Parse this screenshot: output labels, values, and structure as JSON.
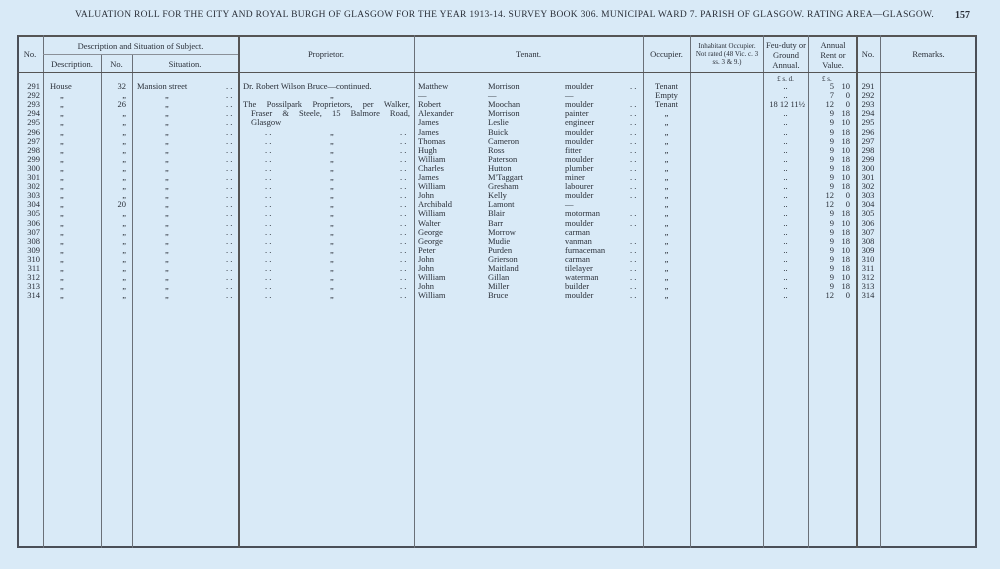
{
  "header": {
    "title": "VALUATION ROLL FOR THE CITY AND ROYAL BURGH OF GLASGOW FOR THE YEAR 1913-14.   SURVEY BOOK 306.   MUNICIPAL WARD 7.   PARISH OF GLASGOW.   RATING AREA—GLASGOW.",
    "page_number": "157"
  },
  "columns": {
    "no": "No.",
    "description_group": "Description and Situation of Subject.",
    "description": "Description.",
    "number": "No.",
    "situation": "Situation.",
    "proprietor": "Proprietor.",
    "tenant": "Tenant.",
    "occupier": "Occupier.",
    "inhabitant": "Inhabitant Occupier. Not rated (48 Vic. c. 3 ss. 3 & 9.)",
    "feu_duty": "Feu-duty or Ground Annual.",
    "annual_rent": "Annual Rent or Value.",
    "no_right": "No.",
    "remarks": "Remarks.",
    "feu_units": "£  s.  d.",
    "rent_units": "£  s."
  },
  "proprietors": {
    "first": "Dr. Robert Wilson Bruce—continued.",
    "second_lines": [
      "The Possilpark Proprietors, per Walker,",
      "Fraser & Steele, 15 Balmore Road,",
      "Glasgow"
    ]
  },
  "rows": [
    {
      "no": "291",
      "desc": "House",
      "num": "32",
      "sit": "Mansion street",
      "first": "Matthew",
      "last": "Morrison",
      "occ": "moulder",
      "occupier": "Tenant",
      "feu": "..",
      "rl": "5",
      "rs": "10"
    },
    {
      "no": "292",
      "desc": "„",
      "num": "„",
      "sit": "„",
      "first": "—",
      "last": "—",
      "occ": "—",
      "occupier": "Empty",
      "feu": "..",
      "rl": "7",
      "rs": "0"
    },
    {
      "no": "293",
      "desc": "„",
      "num": "26",
      "sit": "„",
      "first": "Robert",
      "last": "Moochan",
      "occ": "moulder",
      "occupier": "Tenant",
      "feu": "18  12  11½",
      "rl": "12",
      "rs": "0"
    },
    {
      "no": "294",
      "desc": "„",
      "num": "„",
      "sit": "„",
      "first": "Alexander",
      "last": "Morrison",
      "occ": "painter",
      "occupier": "„",
      "feu": "..",
      "rl": "9",
      "rs": "18"
    },
    {
      "no": "295",
      "desc": "„",
      "num": "„",
      "sit": "„",
      "first": "James",
      "last": "Leslie",
      "occ": "engineer",
      "occupier": "„",
      "feu": "..",
      "rl": "9",
      "rs": "10"
    },
    {
      "no": "296",
      "desc": "„",
      "num": "„",
      "sit": "„",
      "first": "James",
      "last": "Buick",
      "occ": "moulder",
      "occupier": "„",
      "feu": "..",
      "rl": "9",
      "rs": "18"
    },
    {
      "no": "297",
      "desc": "„",
      "num": "„",
      "sit": "„",
      "first": "Thomas",
      "last": "Cameron",
      "occ": "moulder",
      "occupier": "„",
      "feu": "..",
      "rl": "9",
      "rs": "18"
    },
    {
      "no": "298",
      "desc": "„",
      "num": "„",
      "sit": "„",
      "first": "Hugh",
      "last": "Ross",
      "occ": "fitter",
      "occupier": "„",
      "feu": "..",
      "rl": "9",
      "rs": "10"
    },
    {
      "no": "299",
      "desc": "„",
      "num": "„",
      "sit": "„",
      "first": "William",
      "last": "Paterson",
      "occ": "moulder",
      "occupier": "„",
      "feu": "..",
      "rl": "9",
      "rs": "18"
    },
    {
      "no": "300",
      "desc": "„",
      "num": "„",
      "sit": "„",
      "first": "Charles",
      "last": "Hutton",
      "occ": "plumber",
      "occupier": "„",
      "feu": "..",
      "rl": "9",
      "rs": "18"
    },
    {
      "no": "301",
      "desc": "„",
      "num": "„",
      "sit": "„",
      "first": "James",
      "last": "M'Taggart",
      "occ": "miner",
      "occupier": "„",
      "feu": "..",
      "rl": "9",
      "rs": "10"
    },
    {
      "no": "302",
      "desc": "„",
      "num": "„",
      "sit": "„",
      "first": "William",
      "last": "Gresham",
      "occ": "labourer",
      "occupier": "„",
      "feu": "..",
      "rl": "9",
      "rs": "18"
    },
    {
      "no": "303",
      "desc": "„",
      "num": "„",
      "sit": "„",
      "first": "John",
      "last": "Kelly",
      "occ": "moulder",
      "occupier": "„",
      "feu": "..",
      "rl": "12",
      "rs": "0"
    },
    {
      "no": "304",
      "desc": "„",
      "num": "20",
      "sit": "„",
      "first": "Archibald",
      "last": "Lamont",
      "occ": "—",
      "occupier": "„",
      "feu": "..",
      "rl": "12",
      "rs": "0"
    },
    {
      "no": "305",
      "desc": "„",
      "num": "„",
      "sit": "„",
      "first": "William",
      "last": "Blair",
      "occ": "motorman",
      "occupier": "„",
      "feu": "..",
      "rl": "9",
      "rs": "18"
    },
    {
      "no": "306",
      "desc": "„",
      "num": "„",
      "sit": "„",
      "first": "Walter",
      "last": "Barr",
      "occ": "moulder",
      "occupier": "„",
      "feu": "..",
      "rl": "9",
      "rs": "10"
    },
    {
      "no": "307",
      "desc": "„",
      "num": "„",
      "sit": "„",
      "first": "George",
      "last": "Morrow",
      "occ": "carman",
      "occupier": "„",
      "feu": "..",
      "rl": "9",
      "rs": "18"
    },
    {
      "no": "308",
      "desc": "„",
      "num": "„",
      "sit": "„",
      "first": "George",
      "last": "Mudie",
      "occ": "vanman",
      "occupier": "„",
      "feu": "..",
      "rl": "9",
      "rs": "18"
    },
    {
      "no": "309",
      "desc": "„",
      "num": "„",
      "sit": "„",
      "first": "Peter",
      "last": "Purden",
      "occ": "furnaceman",
      "occupier": "„",
      "feu": "..",
      "rl": "9",
      "rs": "10"
    },
    {
      "no": "310",
      "desc": "„",
      "num": "„",
      "sit": "„",
      "first": "John",
      "last": "Grierson",
      "occ": "carman",
      "occupier": "„",
      "feu": "..",
      "rl": "9",
      "rs": "18"
    },
    {
      "no": "311",
      "desc": "„",
      "num": "„",
      "sit": "„",
      "first": "John",
      "last": "Maitland",
      "occ": "tilelayer",
      "occupier": "„",
      "feu": "..",
      "rl": "9",
      "rs": "18"
    },
    {
      "no": "312",
      "desc": "„",
      "num": "„",
      "sit": "„",
      "first": "William",
      "last": "Gillan",
      "occ": "waterman",
      "occupier": "„",
      "feu": "..",
      "rl": "9",
      "rs": "10"
    },
    {
      "no": "313",
      "desc": "„",
      "num": "„",
      "sit": "„",
      "first": "John",
      "last": "Miller",
      "occ": "builder",
      "occupier": "„",
      "feu": "..",
      "rl": "9",
      "rs": "18"
    },
    {
      "no": "314",
      "desc": "„",
      "num": "„",
      "sit": "„",
      "first": "William",
      "last": "Bruce",
      "occ": "moulder",
      "occupier": "„",
      "feu": "..",
      "rl": "12",
      "rs": "0"
    }
  ],
  "ditto_mark": "„",
  "leader_dots": ". ."
}
